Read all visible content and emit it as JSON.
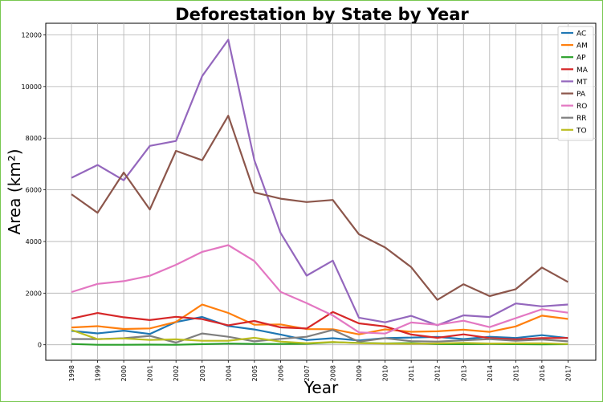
{
  "chart_data": {
    "type": "line",
    "title": "Deforestation by State by Year",
    "xlabel": "Year",
    "ylabel": "Area (km²)",
    "categories": [
      "1998",
      "1999",
      "2000",
      "2001",
      "2002",
      "2003",
      "2004",
      "2005",
      "2006",
      "2007",
      "2008",
      "2009",
      "2010",
      "2011",
      "2012",
      "2013",
      "2014",
      "2015",
      "2016",
      "2017"
    ],
    "ylim": [
      -600,
      12450
    ],
    "yticks": [
      "0",
      "2000",
      "4000",
      "6000",
      "8000",
      "10000",
      "12000"
    ],
    "ytick_values": [
      0,
      2000,
      4000,
      6000,
      8000,
      10000,
      12000
    ],
    "grid": true,
    "legend_position": "top-right",
    "series": [
      {
        "name": "AC",
        "color": "#1f77b4",
        "values": [
          536,
          441,
          547,
          419,
          883,
          1078,
          728,
          592,
          398,
          184,
          254,
          167,
          259,
          280,
          305,
          221,
          309,
          264,
          372,
          257
        ]
      },
      {
        "name": "AM",
        "color": "#ff7f0e",
        "values": [
          670,
          720,
          612,
          634,
          885,
          1558,
          1232,
          775,
          788,
          610,
          604,
          405,
          595,
          502,
          523,
          583,
          500,
          712,
          1129,
          1001
        ]
      },
      {
        "name": "AP",
        "color": "#2ca02c",
        "values": [
          30,
          0,
          0,
          7,
          0,
          25,
          46,
          33,
          30,
          39,
          100,
          70,
          53,
          66,
          27,
          23,
          31,
          25,
          17,
          24
        ]
      },
      {
        "name": "MA",
        "color": "#d62728",
        "values": [
          1012,
          1230,
          1065,
          958,
          1085,
          993,
          755,
          922,
          674,
          631,
          1271,
          828,
          712,
          396,
          269,
          403,
          257,
          209,
          258,
          265
        ]
      },
      {
        "name": "MT",
        "color": "#9467bd",
        "values": [
          6466,
          6963,
          6369,
          7703,
          7892,
          10405,
          11814,
          7145,
          4333,
          2678,
          3258,
          1049,
          871,
          1120,
          757,
          1139,
          1075,
          1601,
          1489,
          1561
        ]
      },
      {
        "name": "PA",
        "color": "#8c564b",
        "values": [
          5829,
          5111,
          6671,
          5237,
          7510,
          7145,
          8870,
          5899,
          5659,
          5526,
          5607,
          4281,
          3770,
          3008,
          1741,
          2346,
          1887,
          2153,
          2992,
          2433
        ]
      },
      {
        "name": "RO",
        "color": "#e377c2",
        "values": [
          2041,
          2358,
          2465,
          2673,
          3099,
          3597,
          3858,
          3244,
          2049,
          1611,
          1136,
          482,
          435,
          865,
          773,
          932,
          684,
          1030,
          1376,
          1243
        ]
      },
      {
        "name": "RR",
        "color": "#7f7f7f",
        "values": [
          223,
          220,
          253,
          345,
          84,
          439,
          311,
          133,
          231,
          309,
          574,
          121,
          256,
          141,
          124,
          170,
          219,
          156,
          202,
          132
        ]
      },
      {
        "name": "TO",
        "color": "#bcbd22",
        "values": [
          576,
          216,
          244,
          189,
          212,
          156,
          158,
          271,
          124,
          63,
          107,
          61,
          49,
          40,
          52,
          74,
          50,
          57,
          58,
          31
        ]
      }
    ]
  }
}
